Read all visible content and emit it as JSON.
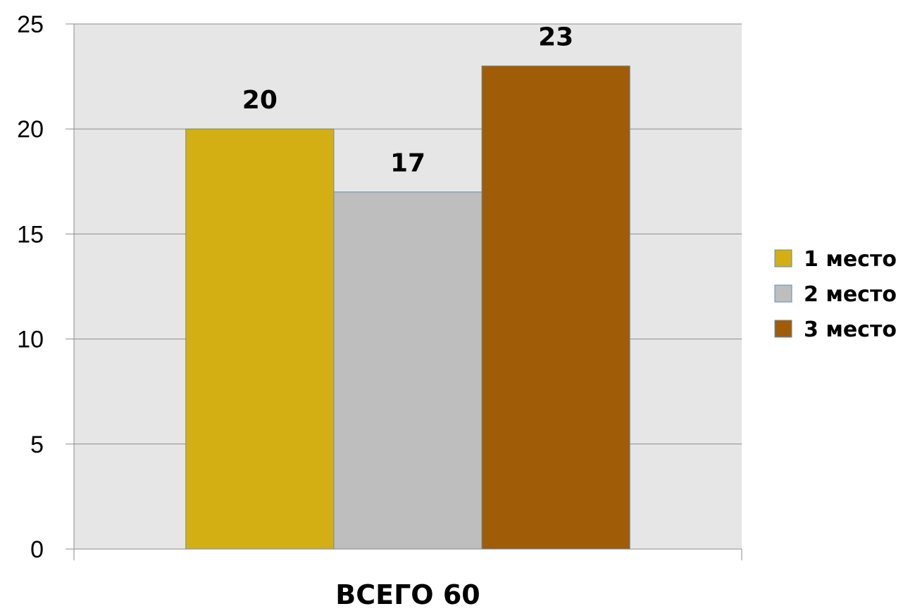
{
  "chart_data": {
    "type": "bar",
    "categories": [
      "ВСЕГО 60"
    ],
    "series": [
      {
        "name": "1 место",
        "values": [
          20
        ],
        "color": "#D4AF14"
      },
      {
        "name": "2 место",
        "values": [
          17
        ],
        "color": "#BEBEBE"
      },
      {
        "name": "3 место",
        "values": [
          23
        ],
        "color": "#A05C06"
      }
    ],
    "ylim": [
      0,
      25
    ],
    "yticks": [
      0,
      5,
      10,
      15,
      20,
      25
    ],
    "grid": true,
    "plot_background": "#E6E6E6",
    "legend_position": "right",
    "data_labels": true
  }
}
